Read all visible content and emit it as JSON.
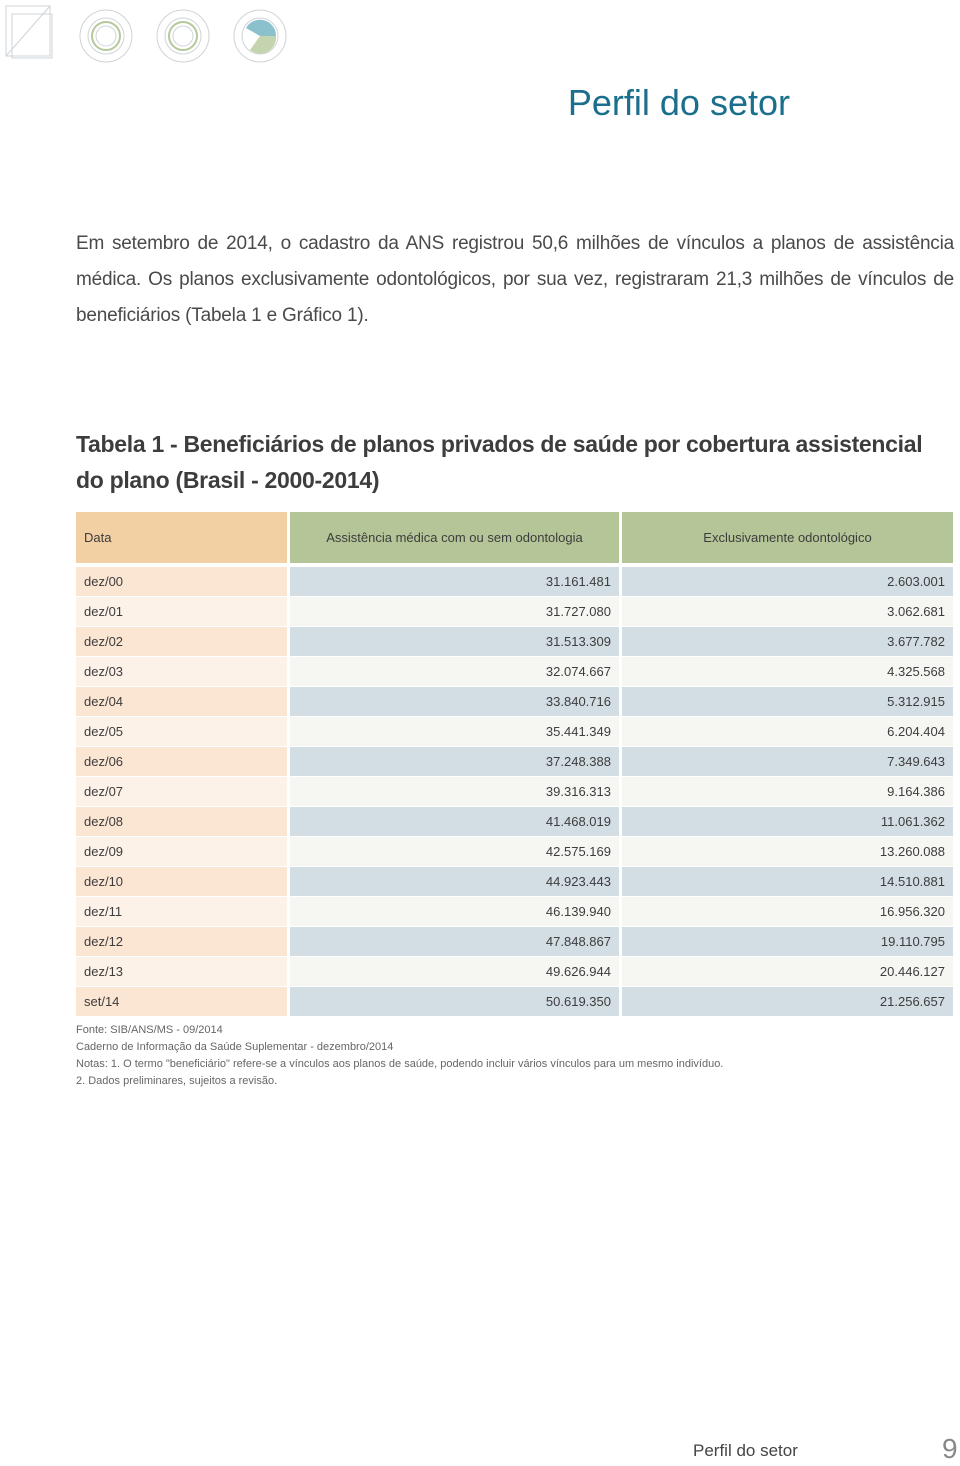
{
  "header": {
    "title": "Perfil do setor"
  },
  "intro": "Em setembro de 2014, o cadastro da ANS registrou 50,6 milhões de vínculos a planos de assistência médica. Os planos exclusivamente odontológicos, por sua vez, registraram 21,3 milhões de vínculos de beneficiários (Tabela 1 e Gráfico 1).",
  "table": {
    "title": "Tabela 1 - Beneficiários de planos privados de saúde por cobertura assistencial do plano (Brasil - 2000-2014)",
    "columns": [
      "Data",
      "Assistência médica com ou sem odontologia",
      "Exclusivamente odontológico"
    ],
    "rows": [
      [
        "dez/00",
        "31.161.481",
        "2.603.001"
      ],
      [
        "dez/01",
        "31.727.080",
        "3.062.681"
      ],
      [
        "dez/02",
        "31.513.309",
        "3.677.782"
      ],
      [
        "dez/03",
        "32.074.667",
        "4.325.568"
      ],
      [
        "dez/04",
        "33.840.716",
        "5.312.915"
      ],
      [
        "dez/05",
        "35.441.349",
        "6.204.404"
      ],
      [
        "dez/06",
        "37.248.388",
        "7.349.643"
      ],
      [
        "dez/07",
        "39.316.313",
        "9.164.386"
      ],
      [
        "dez/08",
        "41.468.019",
        "11.061.362"
      ],
      [
        "dez/09",
        "42.575.169",
        "13.260.088"
      ],
      [
        "dez/10",
        "44.923.443",
        "14.510.881"
      ],
      [
        "dez/11",
        "46.139.940",
        "16.956.320"
      ],
      [
        "dez/12",
        "47.848.867",
        "19.110.795"
      ],
      [
        "dez/13",
        "49.626.944",
        "20.446.127"
      ],
      [
        "set/14",
        "50.619.350",
        "21.256.657"
      ]
    ]
  },
  "notes": [
    "Fonte: SIB/ANS/MS - 09/2014",
    "Caderno de Informação da Saúde Suplementar - dezembro/2014",
    "Notas:  1. O termo \"beneficiário\" refere-se a vínculos aos planos de saúde, podendo incluir vários vínculos para um mesmo indivíduo.",
    "2. Dados preliminares, sujeitos a revisão."
  ],
  "footer": {
    "section": "Perfil do setor",
    "page": "9"
  }
}
